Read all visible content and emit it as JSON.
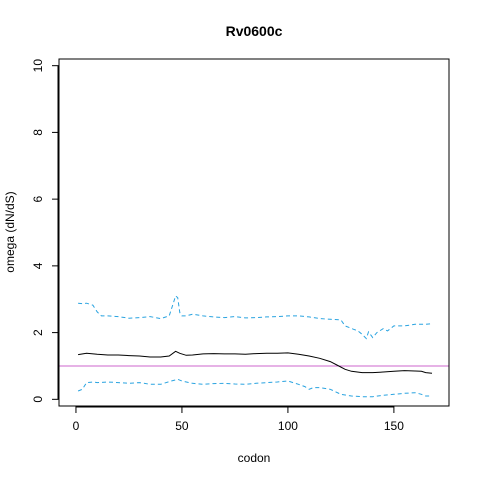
{
  "chart_data": {
    "type": "line",
    "title": "Rv0600c",
    "xlabel": "codon",
    "ylabel": "omega (dN/dS)",
    "xlim": [
      -8,
      176
    ],
    "ylim": [
      -0.2,
      10.2
    ],
    "xticks": [
      0,
      50,
      100,
      150
    ],
    "yticks": [
      0,
      2,
      4,
      6,
      8,
      10
    ],
    "reference_line": {
      "y": 1,
      "color": "#cc66cc"
    },
    "series": [
      {
        "role": "estimate",
        "color": "#000000",
        "style": "solid",
        "x": [
          1,
          5,
          10,
          15,
          20,
          25,
          30,
          35,
          40,
          44,
          47,
          49,
          52,
          55,
          60,
          65,
          70,
          75,
          80,
          85,
          90,
          95,
          100,
          105,
          110,
          115,
          120,
          124,
          127,
          130,
          135,
          140,
          145,
          150,
          155,
          160,
          163,
          165,
          168
        ],
        "values": [
          1.34,
          1.38,
          1.35,
          1.33,
          1.33,
          1.31,
          1.3,
          1.27,
          1.27,
          1.3,
          1.44,
          1.38,
          1.32,
          1.33,
          1.36,
          1.37,
          1.36,
          1.36,
          1.35,
          1.37,
          1.38,
          1.38,
          1.39,
          1.35,
          1.3,
          1.23,
          1.13,
          1.0,
          0.9,
          0.84,
          0.8,
          0.8,
          0.82,
          0.84,
          0.86,
          0.85,
          0.84,
          0.8,
          0.78
        ]
      },
      {
        "role": "upper bound",
        "color": "#29a3e0",
        "style": "dashed",
        "x": [
          1,
          3,
          5,
          8,
          10,
          12,
          15,
          20,
          25,
          30,
          35,
          40,
          44,
          46,
          47,
          48,
          49,
          50,
          52,
          55,
          60,
          65,
          70,
          75,
          80,
          85,
          90,
          95,
          100,
          105,
          110,
          115,
          120,
          125,
          127,
          129,
          131,
          133,
          135,
          137,
          138,
          140,
          142,
          145,
          147,
          150,
          155,
          160,
          165,
          168
        ],
        "values": [
          2.88,
          2.87,
          2.88,
          2.82,
          2.62,
          2.5,
          2.5,
          2.48,
          2.43,
          2.45,
          2.48,
          2.42,
          2.5,
          2.9,
          3.1,
          3.05,
          2.6,
          2.5,
          2.5,
          2.55,
          2.5,
          2.47,
          2.45,
          2.48,
          2.44,
          2.45,
          2.47,
          2.48,
          2.5,
          2.5,
          2.47,
          2.42,
          2.4,
          2.38,
          2.2,
          2.15,
          2.1,
          2.05,
          1.95,
          1.82,
          2.02,
          1.85,
          2.0,
          2.12,
          2.05,
          2.2,
          2.2,
          2.25,
          2.25,
          2.27
        ]
      },
      {
        "role": "lower bound",
        "color": "#29a3e0",
        "style": "dashed",
        "x": [
          1,
          3,
          5,
          8,
          10,
          15,
          20,
          25,
          30,
          35,
          40,
          45,
          48,
          50,
          55,
          60,
          65,
          70,
          75,
          80,
          85,
          90,
          95,
          100,
          105,
          108,
          110,
          112,
          115,
          120,
          125,
          130,
          135,
          140,
          145,
          150,
          155,
          160,
          163,
          165,
          168
        ],
        "values": [
          0.25,
          0.3,
          0.5,
          0.52,
          0.5,
          0.52,
          0.5,
          0.48,
          0.5,
          0.45,
          0.45,
          0.55,
          0.6,
          0.55,
          0.48,
          0.45,
          0.47,
          0.48,
          0.46,
          0.45,
          0.48,
          0.5,
          0.52,
          0.55,
          0.45,
          0.38,
          0.3,
          0.35,
          0.35,
          0.3,
          0.15,
          0.1,
          0.08,
          0.08,
          0.12,
          0.15,
          0.18,
          0.2,
          0.15,
          0.1,
          0.1
        ]
      }
    ]
  }
}
